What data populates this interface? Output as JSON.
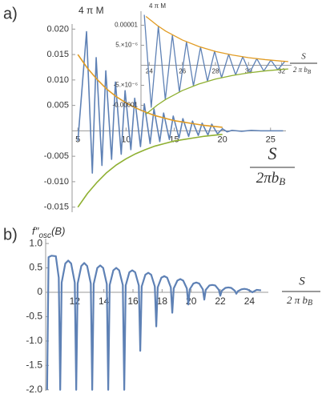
{
  "chart_data": [
    {
      "type": "line",
      "panel_label": "a)",
      "y_label": "4 π M",
      "x_label": {
        "numerator": "S",
        "denominator": "2πb",
        "subscript": "B"
      },
      "xlim": [
        4.4,
        26.6
      ],
      "ylim": [
        -0.016,
        0.021
      ],
      "xticks": [
        5,
        10,
        15,
        20,
        25
      ],
      "yticks": [
        {
          "value": 0.02,
          "label": "0.020"
        },
        0.015,
        {
          "value": 0.01,
          "label": "0.010"
        },
        0.005,
        -0.005,
        {
          "value": -0.01,
          "label": "-0.010"
        },
        -0.015
      ],
      "series": [
        {
          "color": "#5e81b5",
          "x": [
            5.0,
            5.9,
            6.5,
            6.9,
            7.5,
            7.9,
            8.5,
            8.9,
            9.5,
            9.9,
            10.5,
            10.9,
            11.5,
            11.9,
            12.5,
            12.9,
            13.5,
            13.9,
            14.5,
            14.9,
            15.5,
            15.9,
            16.5,
            16.9,
            17.5,
            17.9,
            18.5,
            18.9,
            19.5,
            20.0,
            20.5,
            21,
            22,
            23,
            24,
            25,
            26.3
          ],
          "values": [
            -0.002,
            0.0195,
            -0.0083,
            0.0144,
            -0.0068,
            0.0118,
            -0.0056,
            0.0096,
            -0.0046,
            0.0079,
            -0.0037,
            0.0064,
            -0.0031,
            0.0053,
            -0.0025,
            0.0043,
            -0.0021,
            0.0035,
            -0.0017,
            0.0029,
            -0.0014,
            0.0024,
            -0.0011,
            0.0019,
            -0.0009,
            0.0015,
            -0.0008,
            0.0013,
            -0.0006,
            0.0004,
            -0.0002,
            0.0001,
            -0.0001,
            0.0001,
            0,
            0,
            0
          ]
        },
        {
          "color": "#e19c24",
          "x": [
            5,
            6,
            7,
            8,
            9,
            10,
            11,
            12,
            13,
            14,
            15,
            16,
            17,
            18,
            19,
            20
          ],
          "values": [
            0.015,
            0.0123,
            0.0101,
            0.0082,
            0.0067,
            0.0055,
            0.0045,
            0.0037,
            0.003,
            0.0025,
            0.002,
            0.0017,
            0.0014,
            0.0011,
            0.0009,
            0.0007
          ]
        },
        {
          "color": "#8fb032",
          "x": [
            5,
            6,
            7,
            8,
            9,
            10,
            11,
            12,
            13,
            14,
            15,
            16,
            17,
            18,
            19,
            20
          ],
          "values": [
            -0.015,
            -0.0123,
            -0.0101,
            -0.0082,
            -0.0067,
            -0.0055,
            -0.0045,
            -0.0037,
            -0.003,
            -0.0025,
            -0.002,
            -0.0017,
            -0.0014,
            -0.0011,
            -0.0009,
            -0.0007
          ]
        }
      ]
    },
    {
      "type": "line",
      "y_label": "4 π M",
      "x_label": {
        "numerator": "S",
        "denominator": "2 π b",
        "subscript": "B"
      },
      "xlim": [
        23.5,
        32.6
      ],
      "ylim": [
        -1.15e-05,
        1.35e-05
      ],
      "xticks": [
        24,
        26,
        28,
        30,
        32
      ],
      "yticks": [
        1e-05,
        {
          "value": 5e-06,
          "label": "5.×10⁻⁶"
        },
        {
          "value": -5e-06,
          "label": "-5.×10⁻⁶"
        },
        -1e-05
      ],
      "series": [
        {
          "color": "#5e81b5",
          "x": [
            23.7,
            24.12,
            24.55,
            24.97,
            25.4,
            25.82,
            26.25,
            26.67,
            27.1,
            27.52,
            27.95,
            28.37,
            28.8,
            29.22,
            29.65,
            30.07,
            30.5,
            30.92,
            31.35,
            31.77,
            32.2
          ],
          "values": [
            1.26e-05,
            -1.05e-05,
            9.75e-06,
            -8.6e-06,
            7.56e-06,
            -6.66e-06,
            5.86e-06,
            -5.16e-06,
            4.54e-06,
            -4e-06,
            3.52e-06,
            -3.1e-06,
            2.73e-06,
            -2.4e-06,
            2.11e-06,
            -1.86e-06,
            1.64e-06,
            -1.44e-06,
            1.27e-06,
            -1.12e-06,
            9.8e-07
          ]
        },
        {
          "color": "#e19c24",
          "x": [
            23.8,
            24.5,
            25,
            26,
            27,
            28,
            29,
            30,
            31,
            32,
            32.4
          ],
          "values": [
            1.22e-05,
            9.9e-06,
            8.52e-06,
            6.31e-06,
            4.68e-06,
            3.46e-06,
            2.57e-06,
            1.9e-06,
            1.41e-06,
            1.04e-06,
            9.3e-07
          ]
        },
        {
          "color": "#8fb032",
          "x": [
            23.8,
            24.5,
            25,
            26,
            27,
            28,
            29,
            30,
            31,
            32,
            32.4
          ],
          "values": [
            -1.22e-05,
            -9.9e-06,
            -8.52e-06,
            -6.31e-06,
            -4.68e-06,
            -3.46e-06,
            -2.57e-06,
            -1.9e-06,
            -1.41e-06,
            -1.04e-06,
            -9.3e-07
          ]
        }
      ]
    },
    {
      "type": "line",
      "panel_label": "b)",
      "y_label": {
        "main": "f′′",
        "subscript": "osc",
        "suffix": "(B)"
      },
      "x_label": {
        "numerator": "S",
        "denominator": "2 π b",
        "subscript": "B"
      },
      "xlim": [
        10,
        25.3
      ],
      "ylim": [
        -2.02,
        1.1
      ],
      "xticks": [
        12,
        14,
        16,
        18,
        20,
        22,
        24
      ],
      "yticks": [
        {
          "value": 1,
          "label": "1.0"
        },
        0.5,
        0,
        -0.5,
        {
          "value": -1,
          "label": "-1.0"
        },
        -1.5,
        {
          "value": -2,
          "label": "-2.0"
        }
      ],
      "series": [
        {
          "color": "#5e81b5",
          "x": [
            10.1,
            10.2,
            10.4,
            10.7,
            10.9,
            11.0,
            11.1,
            11.35,
            11.55,
            11.75,
            12.0,
            12.1,
            12.2,
            12.45,
            12.65,
            12.85,
            13.1,
            13.2,
            13.3,
            13.55,
            13.75,
            13.95,
            14.2,
            14.3,
            14.4,
            14.65,
            14.85,
            15.05,
            15.3,
            15.4,
            15.5,
            15.75,
            15.95,
            16.15,
            16.4,
            16.5,
            16.6,
            16.85,
            17.05,
            17.25,
            17.5,
            17.6,
            17.7,
            17.95,
            18.15,
            18.35,
            18.6,
            18.7,
            18.8,
            19.05,
            19.25,
            19.45,
            19.7,
            19.8,
            19.9,
            20.15,
            20.35,
            20.55,
            20.8,
            20.9,
            21.0,
            21.25,
            21.45,
            21.65,
            21.9,
            22.0,
            22.1,
            22.35,
            22.55,
            22.75,
            23.0,
            23.1,
            23.2,
            23.45,
            23.65,
            23.85,
            24.1,
            24.2,
            24.5,
            24.8
          ],
          "values": [
            -2,
            0.72,
            0.75,
            0.74,
            0.3,
            -2,
            0.2,
            0.59,
            0.65,
            0.59,
            0.2,
            -2,
            0.18,
            0.54,
            0.6,
            0.54,
            0.18,
            -2,
            0.17,
            0.5,
            0.55,
            0.5,
            0.17,
            -2,
            0.15,
            0.45,
            0.5,
            0.45,
            0.15,
            -2,
            0.14,
            0.41,
            0.45,
            0.41,
            0.14,
            -1.2,
            0.12,
            0.36,
            0.4,
            0.36,
            0.12,
            -0.7,
            0.1,
            0.3,
            0.33,
            0.3,
            0.1,
            -0.42,
            0.08,
            0.24,
            0.27,
            0.24,
            0.08,
            -0.25,
            0.06,
            0.18,
            0.2,
            0.18,
            0.06,
            -0.15,
            0.05,
            0.14,
            0.15,
            0.14,
            0.05,
            -0.07,
            0.03,
            0.09,
            0.1,
            0.09,
            0.03,
            -0.03,
            0.02,
            0.06,
            0.07,
            0.06,
            0.02,
            0,
            0.05,
            0.04
          ]
        }
      ]
    }
  ]
}
